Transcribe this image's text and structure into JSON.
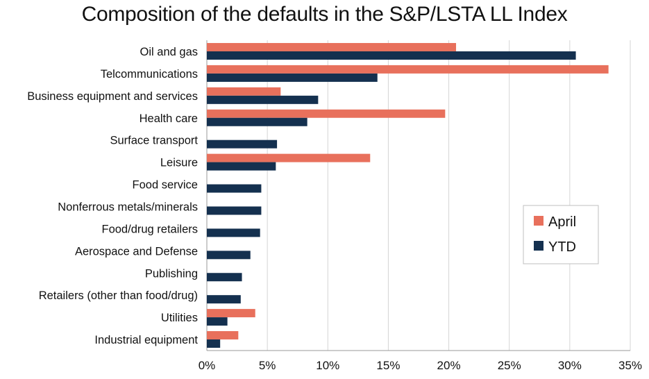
{
  "chart_data": {
    "type": "bar",
    "orientation": "horizontal",
    "title": "Composition of the defaults in the S&P/LSTA LL Index",
    "categories": [
      "Oil and gas",
      "Telcommunications",
      "Business equipment and services",
      "Health care",
      "Surface transport",
      "Leisure",
      "Food service",
      "Nonferrous metals/minerals",
      "Food/drug retailers",
      "Aerospace and Defense",
      "Publishing",
      "Retailers (other than food/drug)",
      "Utilities",
      "Industrial equipment"
    ],
    "series": [
      {
        "name": "April",
        "color": "#E8705C",
        "values": [
          20.6,
          33.2,
          6.1,
          19.7,
          0,
          13.5,
          0,
          0,
          0,
          0,
          0,
          0,
          4.0,
          2.6
        ]
      },
      {
        "name": "YTD",
        "color": "#14304F",
        "values": [
          30.5,
          14.1,
          9.2,
          8.3,
          5.8,
          5.7,
          4.5,
          4.5,
          4.4,
          3.6,
          2.9,
          2.8,
          1.7,
          1.1
        ]
      }
    ],
    "xlim": [
      0,
      35
    ],
    "xticks": [
      "0%",
      "5%",
      "10%",
      "15%",
      "20%",
      "25%",
      "30%",
      "35%"
    ],
    "grid": "vertical",
    "legend": "right"
  }
}
